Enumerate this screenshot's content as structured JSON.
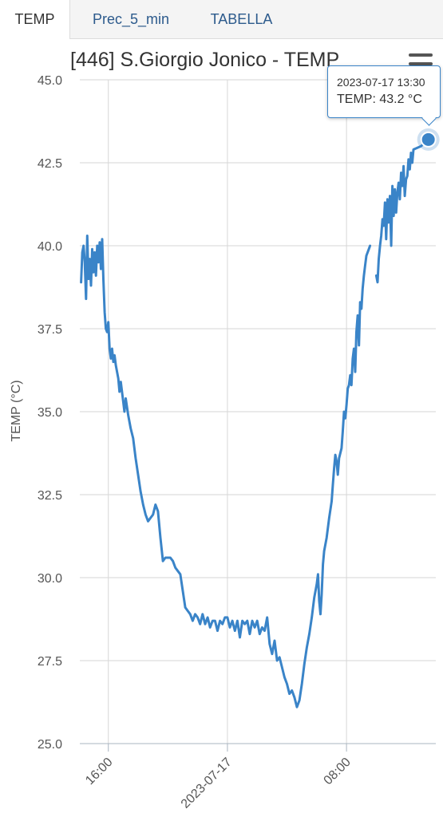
{
  "tabs": [
    {
      "label": "TEMP",
      "active": true
    },
    {
      "label": "Prec_5_min",
      "active": false
    },
    {
      "label": "TABELLA",
      "active": false
    }
  ],
  "menu_icon": "hamburger-menu-icon",
  "tooltip": {
    "time": "2023-07-17 13:30",
    "label": "TEMP: 43.2 °C"
  },
  "colors": {
    "line": "#3a84c8",
    "grid": "#d6d6d6",
    "tab_text": "#2c5a8c"
  },
  "chart_data": {
    "type": "line",
    "title": "[446] S.Giorgio Jonico - TEMP",
    "ylabel": "TEMP (°C)",
    "xlabel": "",
    "ylim": [
      25.0,
      45.0
    ],
    "y_ticks": [
      "25.0",
      "27.5",
      "30.0",
      "32.5",
      "35.0",
      "37.5",
      "40.0",
      "42.5",
      "45.0"
    ],
    "x_ticks": [
      {
        "label": "16:00",
        "x": "2023-07-16 16:00"
      },
      {
        "label": "2023-07-17",
        "x": "2023-07-17 00:00"
      },
      {
        "label": "08:00",
        "x": "2023-07-17 08:00"
      }
    ],
    "x_range": [
      "2023-07-16 14:05",
      "2023-07-17 14:00"
    ],
    "grid": true,
    "series": [
      {
        "name": "TEMP",
        "points": [
          [
            "2023-07-16 14:10",
            38.9
          ],
          [
            "2023-07-16 14:15",
            39.8
          ],
          [
            "2023-07-16 14:20",
            40.0
          ],
          [
            "2023-07-16 14:25",
            39.5
          ],
          [
            "2023-07-16 14:30",
            38.4
          ],
          [
            "2023-07-16 14:35",
            40.3
          ],
          [
            "2023-07-16 14:40",
            39.0
          ],
          [
            "2023-07-16 14:45",
            39.6
          ],
          [
            "2023-07-16 14:50",
            38.8
          ],
          [
            "2023-07-16 14:55",
            39.9
          ],
          [
            "2023-07-16 15:00",
            39.2
          ],
          [
            "2023-07-16 15:05",
            39.8
          ],
          [
            "2023-07-16 15:10",
            39.1
          ],
          [
            "2023-07-16 15:15",
            40.0
          ],
          [
            "2023-07-16 15:20",
            39.5
          ],
          [
            "2023-07-16 15:25",
            40.1
          ],
          [
            "2023-07-16 15:30",
            39.3
          ],
          [
            "2023-07-16 15:35",
            40.2
          ],
          [
            "2023-07-16 15:40",
            39.0
          ],
          [
            "2023-07-16 15:45",
            38.0
          ],
          [
            "2023-07-16 15:50",
            37.5
          ],
          [
            "2023-07-16 15:55",
            37.4
          ],
          [
            "2023-07-16 16:00",
            37.7
          ],
          [
            "2023-07-16 16:05",
            36.9
          ],
          [
            "2023-07-16 16:10",
            36.6
          ],
          [
            "2023-07-16 16:15",
            36.9
          ],
          [
            "2023-07-16 16:20",
            36.5
          ],
          [
            "2023-07-16 16:25",
            36.7
          ],
          [
            "2023-07-16 16:30",
            36.4
          ],
          [
            "2023-07-16 16:40",
            36.0
          ],
          [
            "2023-07-16 16:45",
            35.6
          ],
          [
            "2023-07-16 16:50",
            35.9
          ],
          [
            "2023-07-16 17:00",
            35.3
          ],
          [
            "2023-07-16 17:05",
            35.0
          ],
          [
            "2023-07-16 17:10",
            35.4
          ],
          [
            "2023-07-16 17:20",
            34.9
          ],
          [
            "2023-07-16 17:30",
            34.5
          ],
          [
            "2023-07-16 17:40",
            34.2
          ],
          [
            "2023-07-16 17:50",
            33.6
          ],
          [
            "2023-07-16 18:00",
            33.1
          ],
          [
            "2023-07-16 18:10",
            32.6
          ],
          [
            "2023-07-16 18:20",
            32.2
          ],
          [
            "2023-07-16 18:30",
            31.9
          ],
          [
            "2023-07-16 18:40",
            31.7
          ],
          [
            "2023-07-16 18:50",
            31.8
          ],
          [
            "2023-07-16 19:00",
            31.9
          ],
          [
            "2023-07-16 19:10",
            32.2
          ],
          [
            "2023-07-16 19:20",
            32.0
          ],
          [
            "2023-07-16 19:30",
            31.2
          ],
          [
            "2023-07-16 19:40",
            30.5
          ],
          [
            "2023-07-16 19:50",
            30.6
          ],
          [
            "2023-07-16 20:00",
            30.6
          ],
          [
            "2023-07-16 20:10",
            30.6
          ],
          [
            "2023-07-16 20:20",
            30.5
          ],
          [
            "2023-07-16 20:30",
            30.3
          ],
          [
            "2023-07-16 20:40",
            30.2
          ],
          [
            "2023-07-16 20:50",
            30.1
          ],
          [
            "2023-07-16 21:00",
            29.6
          ],
          [
            "2023-07-16 21:10",
            29.1
          ],
          [
            "2023-07-16 21:20",
            29.0
          ],
          [
            "2023-07-16 21:30",
            28.9
          ],
          [
            "2023-07-16 21:40",
            28.7
          ],
          [
            "2023-07-16 21:50",
            28.9
          ],
          [
            "2023-07-16 22:00",
            28.8
          ],
          [
            "2023-07-16 22:10",
            28.6
          ],
          [
            "2023-07-16 22:20",
            28.9
          ],
          [
            "2023-07-16 22:30",
            28.6
          ],
          [
            "2023-07-16 22:40",
            28.8
          ],
          [
            "2023-07-16 22:50",
            28.5
          ],
          [
            "2023-07-16 23:00",
            28.7
          ],
          [
            "2023-07-16 23:10",
            28.7
          ],
          [
            "2023-07-16 23:20",
            28.4
          ],
          [
            "2023-07-16 23:30",
            28.7
          ],
          [
            "2023-07-16 23:40",
            28.6
          ],
          [
            "2023-07-16 23:50",
            28.8
          ],
          [
            "2023-07-17 00:00",
            28.8
          ],
          [
            "2023-07-17 00:10",
            28.5
          ],
          [
            "2023-07-17 00:20",
            28.7
          ],
          [
            "2023-07-17 00:30",
            28.4
          ],
          [
            "2023-07-17 00:40",
            28.7
          ],
          [
            "2023-07-17 00:50",
            28.2
          ],
          [
            "2023-07-17 01:00",
            28.7
          ],
          [
            "2023-07-17 01:10",
            28.6
          ],
          [
            "2023-07-17 01:20",
            28.7
          ],
          [
            "2023-07-17 01:30",
            28.3
          ],
          [
            "2023-07-17 01:40",
            28.7
          ],
          [
            "2023-07-17 01:50",
            28.5
          ],
          [
            "2023-07-17 02:00",
            28.7
          ],
          [
            "2023-07-17 02:10",
            28.3
          ],
          [
            "2023-07-17 02:20",
            28.5
          ],
          [
            "2023-07-17 02:30",
            28.4
          ],
          [
            "2023-07-17 02:40",
            28.8
          ],
          [
            "2023-07-17 02:50",
            28.0
          ],
          [
            "2023-07-17 03:00",
            27.7
          ],
          [
            "2023-07-17 03:10",
            28.1
          ],
          [
            "2023-07-17 03:20",
            27.5
          ],
          [
            "2023-07-17 03:30",
            27.6
          ],
          [
            "2023-07-17 03:40",
            27.3
          ],
          [
            "2023-07-17 03:50",
            27.0
          ],
          [
            "2023-07-17 04:00",
            26.8
          ],
          [
            "2023-07-17 04:10",
            26.5
          ],
          [
            "2023-07-17 04:20",
            26.6
          ],
          [
            "2023-07-17 04:30",
            26.4
          ],
          [
            "2023-07-17 04:40",
            26.1
          ],
          [
            "2023-07-17 04:50",
            26.3
          ],
          [
            "2023-07-17 05:00",
            26.8
          ],
          [
            "2023-07-17 05:10",
            27.4
          ],
          [
            "2023-07-17 05:20",
            27.9
          ],
          [
            "2023-07-17 05:30",
            28.3
          ],
          [
            "2023-07-17 05:40",
            28.8
          ],
          [
            "2023-07-17 05:50",
            29.4
          ],
          [
            "2023-07-17 06:00",
            29.8
          ],
          [
            "2023-07-17 06:05",
            30.1
          ],
          [
            "2023-07-17 06:10",
            29.3
          ],
          [
            "2023-07-17 06:15",
            28.9
          ],
          [
            "2023-07-17 06:20",
            29.5
          ],
          [
            "2023-07-17 06:25",
            30.4
          ],
          [
            "2023-07-17 06:30",
            30.8
          ],
          [
            "2023-07-17 06:40",
            31.2
          ],
          [
            "2023-07-17 06:50",
            31.8
          ],
          [
            "2023-07-17 07:00",
            32.3
          ],
          [
            "2023-07-17 07:05",
            32.8
          ],
          [
            "2023-07-17 07:10",
            33.3
          ],
          [
            "2023-07-17 07:15",
            33.7
          ],
          [
            "2023-07-17 07:20",
            33.5
          ],
          [
            "2023-07-17 07:25",
            33.1
          ],
          [
            "2023-07-17 07:30",
            33.6
          ],
          [
            "2023-07-17 07:40",
            33.9
          ],
          [
            "2023-07-17 07:45",
            34.4
          ],
          [
            "2023-07-17 07:50",
            35.0
          ],
          [
            "2023-07-17 07:55",
            34.8
          ],
          [
            "2023-07-17 08:00",
            35.2
          ],
          [
            "2023-07-17 08:05",
            35.7
          ],
          [
            "2023-07-17 08:10",
            35.8
          ],
          [
            "2023-07-17 08:15",
            36.1
          ],
          [
            "2023-07-17 08:20",
            35.8
          ],
          [
            "2023-07-17 08:25",
            36.6
          ],
          [
            "2023-07-17 08:30",
            36.9
          ],
          [
            "2023-07-17 08:35",
            36.2
          ],
          [
            "2023-07-17 08:40",
            37.4
          ],
          [
            "2023-07-17 08:45",
            37.9
          ],
          [
            "2023-07-17 08:50",
            37.0
          ],
          [
            "2023-07-17 08:55",
            38.3
          ],
          [
            "2023-07-17 09:00",
            38.1
          ],
          [
            "2023-07-17 09:05",
            38.7
          ],
          [
            "2023-07-17 09:10",
            39.1
          ],
          [
            "2023-07-17 09:15",
            39.4
          ],
          [
            "2023-07-17 09:20",
            39.7
          ],
          [
            "2023-07-17 09:30",
            39.9
          ],
          [
            "2023-07-17 09:35",
            40.0
          ],
          null,
          [
            "2023-07-17 10:00",
            39.1
          ],
          [
            "2023-07-17 10:05",
            38.9
          ],
          [
            "2023-07-17 10:10",
            39.6
          ],
          [
            "2023-07-17 10:15",
            40.0
          ],
          [
            "2023-07-17 10:20",
            40.3
          ],
          [
            "2023-07-17 10:25",
            40.8
          ],
          [
            "2023-07-17 10:30",
            40.6
          ],
          [
            "2023-07-17 10:35",
            41.3
          ],
          [
            "2023-07-17 10:40",
            40.2
          ],
          [
            "2023-07-17 10:45",
            41.4
          ],
          [
            "2023-07-17 10:50",
            40.7
          ],
          [
            "2023-07-17 10:55",
            41.5
          ],
          [
            "2023-07-17 11:00",
            40.0
          ],
          [
            "2023-07-17 11:05",
            41.8
          ],
          [
            "2023-07-17 11:10",
            40.9
          ],
          [
            "2023-07-17 11:15",
            41.7
          ],
          [
            "2023-07-17 11:20",
            41.0
          ],
          [
            "2023-07-17 11:25",
            41.6
          ],
          [
            "2023-07-17 11:30",
            41.9
          ],
          [
            "2023-07-17 11:35",
            41.4
          ],
          [
            "2023-07-17 11:40",
            42.2
          ],
          [
            "2023-07-17 11:45",
            41.8
          ],
          [
            "2023-07-17 11:50",
            42.4
          ],
          [
            "2023-07-17 11:55",
            41.5
          ],
          [
            "2023-07-17 12:00",
            42.0
          ],
          [
            "2023-07-17 12:05",
            42.1
          ],
          [
            "2023-07-17 12:10",
            42.6
          ],
          [
            "2023-07-17 12:15",
            42.3
          ],
          [
            "2023-07-17 12:20",
            42.8
          ],
          [
            "2023-07-17 12:25",
            42.5
          ],
          [
            "2023-07-17 12:30",
            42.9
          ],
          [
            "2023-07-17 13:00",
            43.0
          ],
          [
            "2023-07-17 13:30",
            43.2
          ]
        ]
      }
    ],
    "highlighted_point": {
      "x": "2023-07-17 13:30",
      "y": 43.2
    }
  }
}
